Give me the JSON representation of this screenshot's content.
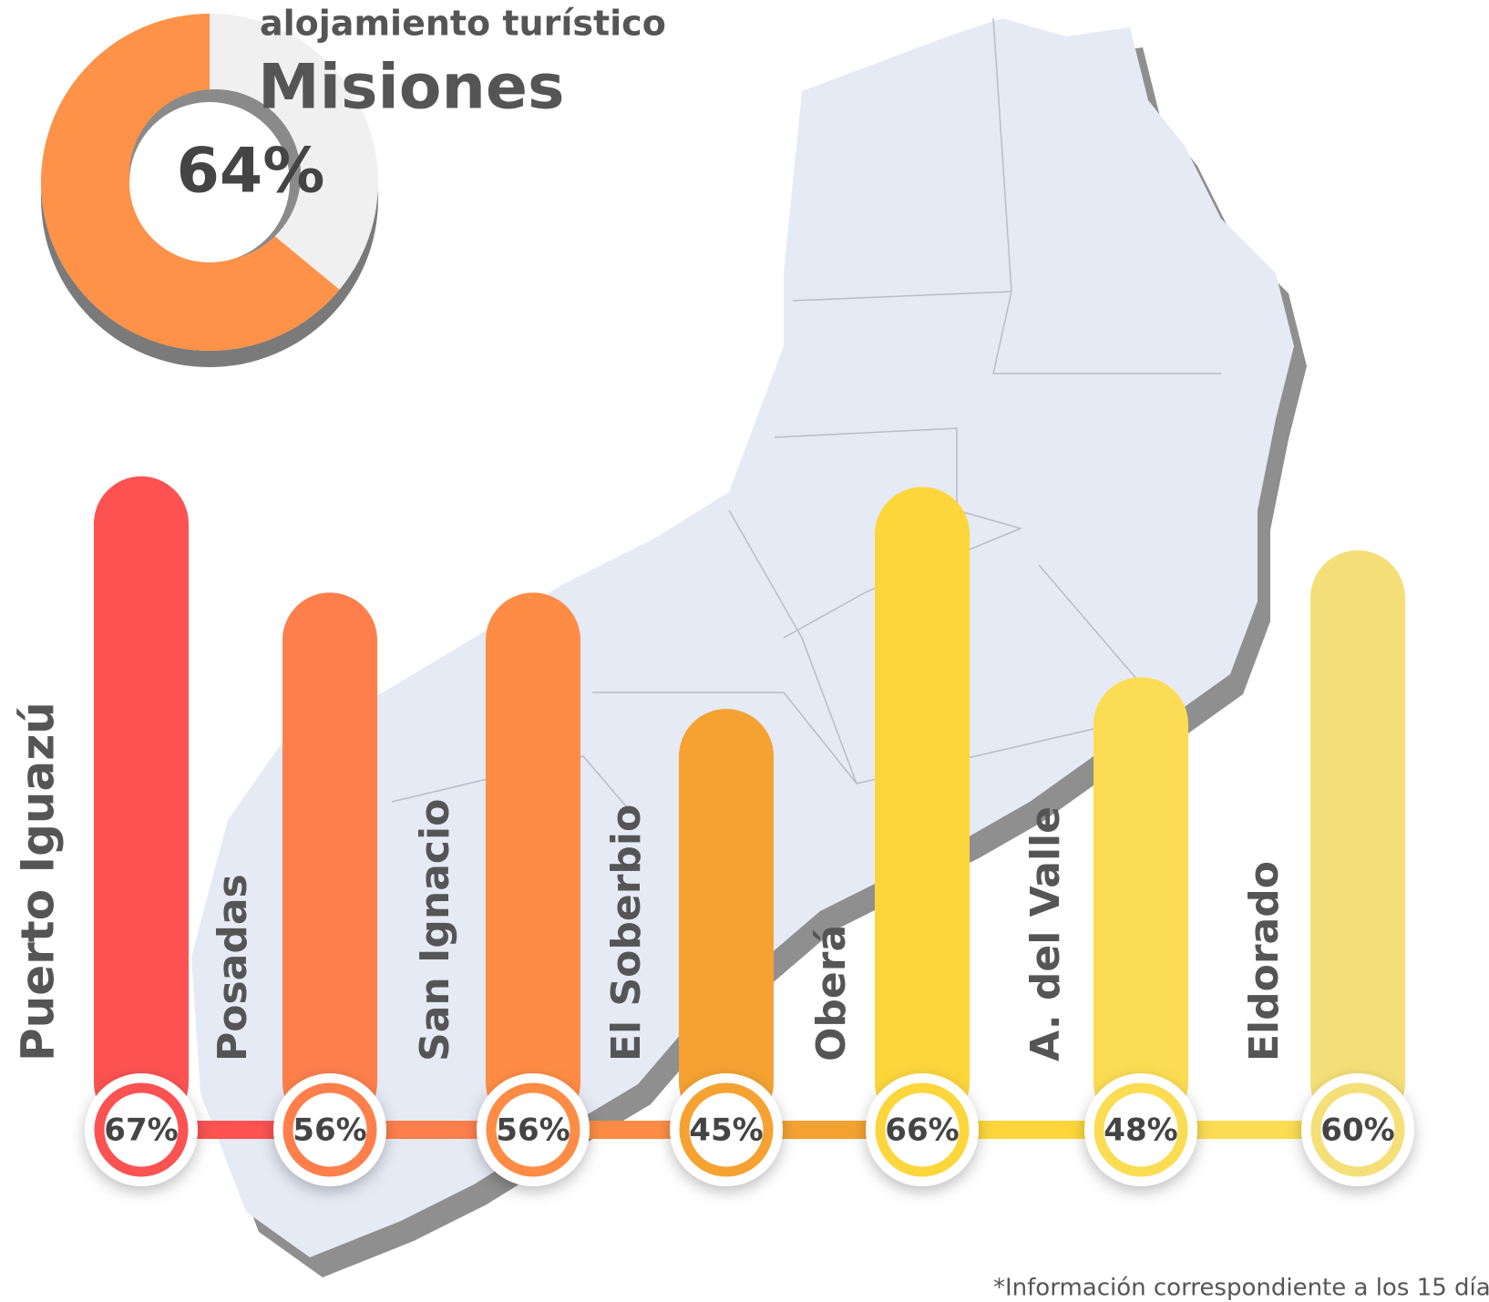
{
  "chart_data": [
    {
      "type": "donut",
      "subtitle": "alojamiento turístico",
      "title": "Misiones",
      "values": [
        64
      ],
      "value_labels": [
        "64%"
      ],
      "color": "#fe9248",
      "rest_color": "#f0f0f0"
    },
    {
      "type": "bar",
      "categories": [
        "Puerto Iguazú",
        "Posadas",
        "San Ignacio",
        "El Soberbio",
        "Oberá",
        "A. del Valle",
        "Eldorado"
      ],
      "values": [
        67,
        56,
        56,
        45,
        66,
        48,
        60
      ],
      "value_labels": [
        "67%",
        "56%",
        "56%",
        "45%",
        "66%",
        "48%",
        "60%"
      ],
      "colors": [
        "#fc5252",
        "#fe7f4c",
        "#fe8c45",
        "#f5a232",
        "#fcd63a",
        "#fcdc52",
        "#f5df78"
      ]
    }
  ],
  "footnote": "*Información correspondiente a los 15 días"
}
